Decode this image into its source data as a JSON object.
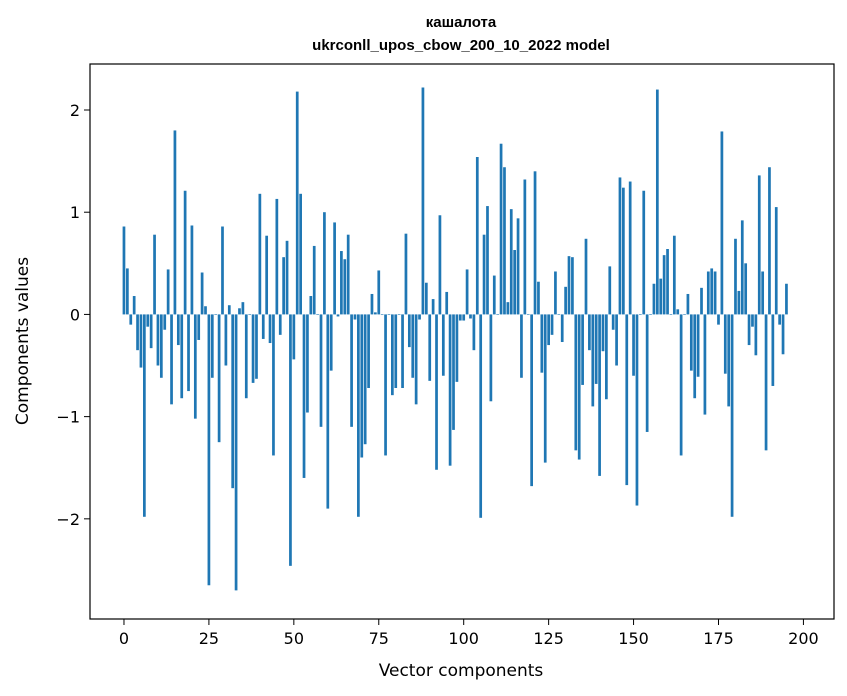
{
  "chart_data": {
    "type": "bar",
    "title": "кашалота",
    "subtitle": "ukrconll_upos_cbow_200_10_2022 model",
    "xlabel": "Vector components",
    "ylabel": "Components values",
    "xlim": [
      -10,
      209
    ],
    "ylim": [
      -2.98,
      2.45
    ],
    "xticks": [
      0,
      25,
      50,
      75,
      100,
      125,
      150,
      175,
      200
    ],
    "yticks": [
      2,
      1,
      0,
      -1,
      -2
    ],
    "ytick_labels": [
      "2",
      "1",
      "0",
      "−1",
      "−2"
    ],
    "grid": false,
    "color": "#1f77b4",
    "values": [
      0.86,
      0.45,
      -0.1,
      0.18,
      -0.35,
      -0.52,
      -1.98,
      -0.12,
      -0.33,
      0.78,
      -0.5,
      -0.62,
      -0.15,
      0.44,
      -0.88,
      1.8,
      -0.3,
      -0.82,
      1.21,
      -0.75,
      0.87,
      -1.02,
      -0.25,
      0.41,
      0.08,
      -2.65,
      -0.62,
      0.0,
      -1.25,
      0.86,
      -0.5,
      0.09,
      -1.7,
      -2.7,
      0.06,
      0.12,
      -0.82,
      0.0,
      -0.67,
      -0.63,
      1.18,
      -0.24,
      0.77,
      -0.28,
      -1.38,
      1.13,
      -0.2,
      0.56,
      0.72,
      -2.46,
      -0.44,
      2.18,
      1.18,
      -1.6,
      -0.96,
      0.18,
      0.67,
      0.0,
      -1.1,
      1.0,
      -1.9,
      -0.55,
      0.9,
      -0.02,
      0.62,
      0.54,
      0.78,
      -1.1,
      -0.05,
      -1.98,
      -1.4,
      -1.27,
      -0.72,
      0.2,
      0.02,
      0.43,
      0.0,
      -1.38,
      0.0,
      -0.79,
      -0.72,
      0.0,
      -0.72,
      0.79,
      -0.32,
      -0.62,
      -0.88,
      -0.05,
      2.22,
      0.31,
      -0.65,
      0.15,
      -1.52,
      0.97,
      -0.6,
      0.22,
      -1.48,
      -1.13,
      -0.66,
      -0.06,
      -0.06,
      0.44,
      -0.04,
      -0.35,
      1.54,
      -1.99,
      0.78,
      1.06,
      -0.85,
      0.38,
      0.0,
      1.67,
      1.44,
      0.12,
      1.03,
      0.63,
      0.94,
      -0.62,
      1.32,
      0.0,
      -1.68,
      1.4,
      0.32,
      -0.57,
      -1.45,
      -0.3,
      -0.2,
      0.42,
      0.0,
      -0.27,
      0.27,
      0.57,
      0.56,
      -1.33,
      -1.42,
      -0.69,
      0.74,
      -0.35,
      -0.9,
      -0.68,
      -1.58,
      -0.36,
      -0.83,
      0.47,
      -0.15,
      -0.5,
      1.34,
      1.24,
      -1.67,
      1.3,
      -0.6,
      -1.87,
      0.0,
      1.21,
      -1.15,
      0.0,
      0.3,
      2.2,
      0.35,
      0.58,
      0.64,
      0.0,
      0.77,
      0.05,
      -1.38,
      0.0,
      0.2,
      -0.55,
      -0.82,
      -0.61,
      0.26,
      -0.98,
      0.42,
      0.45,
      0.42,
      -0.1,
      1.79,
      -0.58,
      -0.9,
      -1.98,
      0.74,
      0.23,
      0.92,
      0.5,
      -0.3,
      -0.12,
      -0.4,
      1.36,
      0.42,
      -1.33,
      1.44,
      -0.7,
      1.05,
      -0.1,
      -0.39,
      0.3
    ]
  }
}
